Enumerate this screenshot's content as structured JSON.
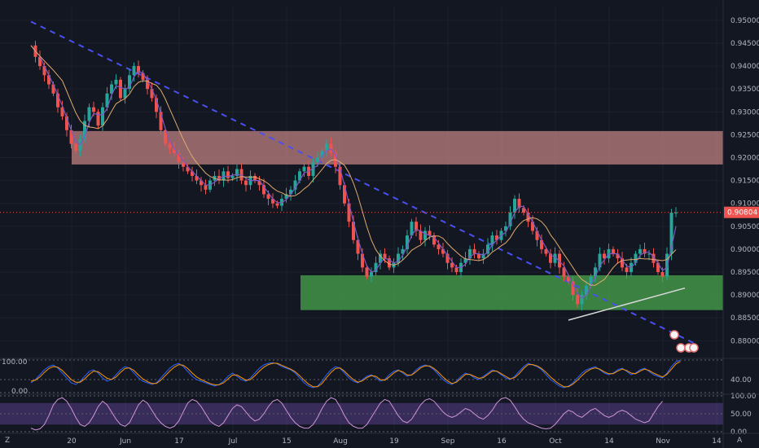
{
  "chart_data": {
    "type": "candlestick",
    "price_axis": {
      "ticks": [
        "0.95000",
        "0.94500",
        "0.94000",
        "0.93500",
        "0.93000",
        "0.92500",
        "0.92000",
        "0.91500",
        "0.91000",
        "0.90500",
        "0.90000",
        "0.89500",
        "0.89000",
        "0.88500",
        "0.88000"
      ],
      "ylim": [
        0.8765,
        0.953
      ],
      "last_price": "0.90804",
      "last_value": 0.90804
    },
    "time_axis": {
      "labels": [
        "20",
        "Jun",
        "17",
        "Jul",
        "15",
        "Aug",
        "19",
        "Sep",
        "16",
        "Oct",
        "14",
        "Nov",
        "14"
      ]
    },
    "closes": [
      0.9445,
      0.942,
      0.94,
      0.938,
      0.936,
      0.934,
      0.931,
      0.929,
      0.926,
      0.923,
      0.9215,
      0.924,
      0.928,
      0.931,
      0.93,
      0.927,
      0.931,
      0.934,
      0.936,
      0.937,
      0.933,
      0.935,
      0.938,
      0.94,
      0.9385,
      0.937,
      0.935,
      0.933,
      0.93,
      0.926,
      0.923,
      0.922,
      0.921,
      0.919,
      0.918,
      0.917,
      0.916,
      0.915,
      0.914,
      0.913,
      0.915,
      0.916,
      0.915,
      0.917,
      0.9155,
      0.916,
      0.9175,
      0.915,
      0.914,
      0.916,
      0.915,
      0.914,
      0.912,
      0.911,
      0.91,
      0.9095,
      0.911,
      0.912,
      0.913,
      0.915,
      0.917,
      0.918,
      0.916,
      0.919,
      0.92,
      0.9215,
      0.923,
      0.921,
      0.918,
      0.914,
      0.91,
      0.906,
      0.902,
      0.899,
      0.896,
      0.894,
      0.895,
      0.897,
      0.899,
      0.898,
      0.896,
      0.897,
      0.899,
      0.9,
      0.903,
      0.906,
      0.904,
      0.902,
      0.904,
      0.903,
      0.901,
      0.9,
      0.899,
      0.897,
      0.896,
      0.895,
      0.897,
      0.898,
      0.9,
      0.899,
      0.898,
      0.899,
      0.901,
      0.903,
      0.902,
      0.904,
      0.905,
      0.908,
      0.911,
      0.909,
      0.908,
      0.906,
      0.904,
      0.902,
      0.9,
      0.899,
      0.897,
      0.899,
      0.896,
      0.894,
      0.893,
      0.89,
      0.888,
      0.89,
      0.892,
      0.894,
      0.896,
      0.899,
      0.898,
      0.9,
      0.899,
      0.898,
      0.896,
      0.895,
      0.897,
      0.899,
      0.9,
      0.899,
      0.899,
      0.897,
      0.895,
      0.894,
      0.899,
      0.908,
      0.908
    ],
    "horizontal_zones": [
      {
        "from": 0.9185,
        "to": 0.9258,
        "color": "#c98986"
      },
      {
        "from": 0.8867,
        "to": 0.8943,
        "color": "#4caf50"
      }
    ],
    "trendlines": [
      {
        "style": "dashed",
        "color": "#4a4ff0",
        "points": [
          [
            0,
            0.9497
          ],
          [
            148,
            0.8795
          ]
        ]
      },
      {
        "style": "solid",
        "color": "#d8d8d8",
        "points": [
          [
            120,
            0.8845
          ],
          [
            146,
            0.8915
          ]
        ]
      }
    ],
    "oscillator_1": {
      "ticks": [
        "100.00",
        "40.00",
        "0.00"
      ],
      "range": [
        0,
        100
      ],
      "k": [
        30,
        40,
        55,
        70,
        80,
        85,
        75,
        60,
        45,
        30,
        25,
        35,
        50,
        65,
        70,
        60,
        45,
        35,
        40,
        55,
        70,
        80,
        75,
        60,
        45,
        35,
        30,
        25,
        30,
        45,
        60,
        75,
        85,
        90,
        80,
        65,
        50,
        40,
        35,
        30,
        25,
        20,
        25,
        35,
        50,
        60,
        50,
        40,
        35,
        45,
        60,
        75,
        85,
        90,
        92,
        88,
        80,
        75,
        70,
        60,
        45,
        30,
        20,
        15,
        20,
        35,
        55,
        70,
        80,
        75,
        60,
        45,
        35,
        30,
        40,
        50,
        55,
        45,
        35,
        40,
        55,
        65,
        70,
        60,
        50,
        55,
        70,
        80,
        85,
        80,
        70,
        55,
        40,
        30,
        25,
        35,
        50,
        60,
        55,
        45,
        40,
        50,
        60,
        70,
        65,
        55,
        45,
        40,
        50,
        65,
        80,
        90,
        85,
        80,
        70,
        55,
        40,
        30,
        20,
        15,
        20,
        30,
        45,
        60,
        70,
        75,
        80,
        70,
        60,
        55,
        60,
        70,
        75,
        65,
        55,
        60,
        70,
        75,
        65,
        55,
        50,
        45,
        60,
        80,
        95,
        100
      ],
      "d": [
        35,
        38,
        48,
        62,
        74,
        80,
        78,
        68,
        54,
        40,
        32,
        32,
        42,
        56,
        66,
        64,
        54,
        44,
        40,
        48,
        62,
        74,
        76,
        68,
        54,
        42,
        34,
        28,
        28,
        38,
        52,
        66,
        78,
        86,
        84,
        74,
        60,
        48,
        40,
        34,
        28,
        24,
        24,
        30,
        42,
        54,
        54,
        46,
        38,
        40,
        52,
        66,
        78,
        86,
        90,
        90,
        84,
        78,
        72,
        64,
        52,
        38,
        26,
        18,
        18,
        28,
        46,
        62,
        74,
        76,
        66,
        52,
        40,
        32,
        36,
        46,
        52,
        50,
        40,
        38,
        48,
        60,
        68,
        64,
        54,
        54,
        64,
        76,
        82,
        82,
        74,
        62,
        48,
        36,
        28,
        32,
        44,
        56,
        56,
        50,
        44,
        46,
        56,
        66,
        66,
        58,
        50,
        42,
        46,
        58,
        74,
        86,
        86,
        82,
        74,
        62,
        48,
        36,
        26,
        18,
        18,
        26,
        38,
        52,
        64,
        72,
        76,
        72,
        64,
        58,
        58,
        66,
        72,
        68,
        60,
        58,
        66,
        72,
        68,
        60,
        54,
        48,
        56,
        72,
        88,
        96
      ]
    },
    "oscillator_2": {
      "ticks": [
        "100.00",
        "50.00",
        "0.00"
      ],
      "range": [
        0,
        100
      ],
      "band": [
        20,
        80
      ],
      "k": [
        10,
        5,
        8,
        20,
        45,
        75,
        90,
        95,
        85,
        65,
        40,
        20,
        15,
        25,
        45,
        70,
        85,
        75,
        55,
        35,
        20,
        15,
        25,
        50,
        75,
        88,
        80,
        60,
        40,
        25,
        15,
        10,
        15,
        30,
        55,
        80,
        90,
        85,
        70,
        50,
        30,
        20,
        15,
        25,
        45,
        65,
        75,
        70,
        55,
        40,
        30,
        35,
        50,
        70,
        85,
        90,
        80,
        60,
        40,
        25,
        15,
        10,
        10,
        20,
        40,
        65,
        85,
        95,
        90,
        70,
        45,
        25,
        15,
        10,
        10,
        20,
        40,
        60,
        80,
        90,
        85,
        65,
        45,
        30,
        25,
        35,
        55,
        75,
        88,
        92,
        85,
        70,
        55,
        45,
        40,
        45,
        55,
        65,
        60,
        50,
        40,
        35,
        45,
        60,
        80,
        92,
        95,
        88,
        70,
        50,
        35,
        25,
        20,
        15,
        10,
        8,
        10,
        20,
        35,
        50,
        60,
        55,
        45,
        40,
        50,
        60,
        65,
        55,
        45,
        40,
        45,
        55,
        60,
        55,
        45,
        35,
        30,
        25,
        30,
        50,
        70,
        85
      ]
    }
  },
  "ui": {
    "bottom_left_label": "Z",
    "bottom_right_label": "A"
  }
}
